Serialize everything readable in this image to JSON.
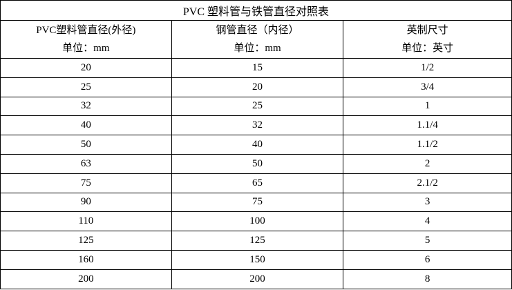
{
  "title": "PVC 塑料管与铁管直径对照表",
  "headers": [
    {
      "name": "PVC塑料管直径(外径)",
      "unit": "单位：mm"
    },
    {
      "name": "钢管直径（内径）",
      "unit": "单位：mm"
    },
    {
      "name": "英制尺寸",
      "unit": "单位：英寸"
    }
  ],
  "rows": [
    [
      "20",
      "15",
      "1/2"
    ],
    [
      "25",
      "20",
      "3/4"
    ],
    [
      "32",
      "25",
      "1"
    ],
    [
      "40",
      "32",
      "1.1/4"
    ],
    [
      "50",
      "40",
      "1.1/2"
    ],
    [
      "63",
      "50",
      "2"
    ],
    [
      "75",
      "65",
      "2.1/2"
    ],
    [
      "90",
      "75",
      "3"
    ],
    [
      "110",
      "100",
      "4"
    ],
    [
      "125",
      "125",
      "5"
    ],
    [
      "160",
      "150",
      "6"
    ],
    [
      "200",
      "200",
      "8"
    ]
  ]
}
